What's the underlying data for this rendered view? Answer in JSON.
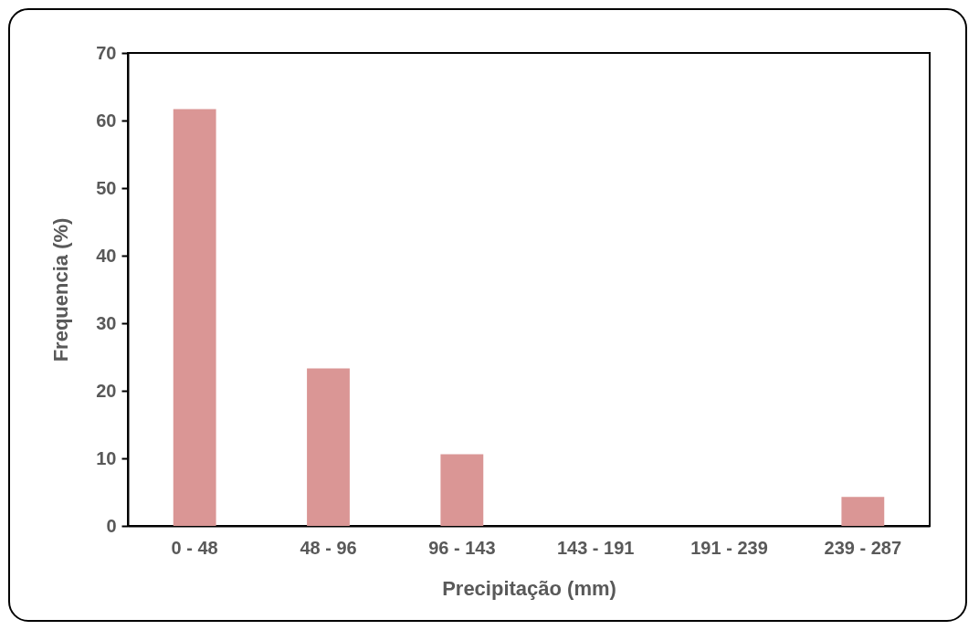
{
  "chart_data": {
    "type": "bar",
    "categories": [
      "0 - 48",
      "48 - 96",
      "96 - 143",
      "143 - 191",
      "191 - 239",
      "239 - 287"
    ],
    "values": [
      61.7,
      23.3,
      10.6,
      0,
      0,
      4.3
    ],
    "color": "#da9695",
    "xlabel": "Precipitação (mm)",
    "ylabel": "Frequencia (%)",
    "ylim": [
      0,
      70
    ],
    "yticks": [
      0,
      10,
      20,
      30,
      40,
      50,
      60,
      70
    ],
    "grid": false
  }
}
